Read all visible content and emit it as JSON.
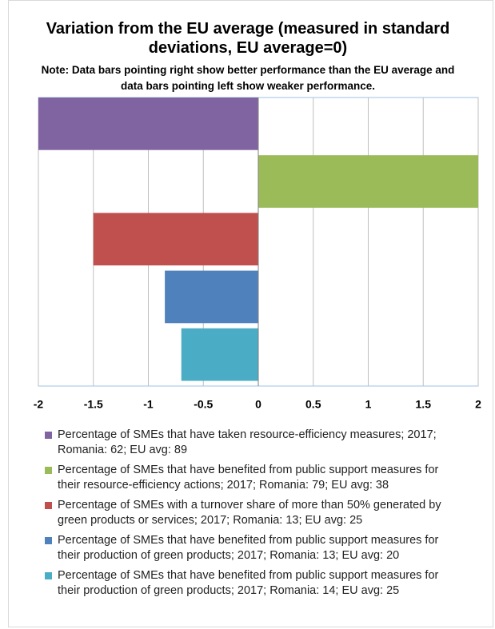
{
  "chart_data": {
    "type": "barh",
    "title": "Variation from the EU average (measured in standard deviations, EU average=0)",
    "subtitle": "Note: Data bars pointing right show better performance than the EU average and data bars pointing left show weaker performance.",
    "categories": [
      "Percentage of SMEs that have taken resource-efficiency measures; 2017; Romania: 62; EU avg: 89",
      "Percentage of SMEs that have benefited from public support measures for their resource-efficiency actions; 2017; Romania: 79; EU avg: 38",
      "Percentage of SMEs with a turnover share of more than 50% generated by green products or services; 2017; Romania: 13; EU avg: 25",
      "Percentage of SMEs that have benefited from public support measures for their production of green products; 2017; Romania: 13; EU avg: 20",
      "Percentage of SMEs that have benefited from public support measures for their production of green products; 2017; Romania: 14; EU avg: 25"
    ],
    "values": [
      -2,
      2,
      -1.5,
      -0.85,
      -0.7
    ],
    "colors": [
      "#8064a2",
      "#9bbb59",
      "#c0504d",
      "#4f81bd",
      "#4bacc6"
    ],
    "xlim": [
      -2,
      2
    ],
    "xticks": [
      -2,
      -1.5,
      -1,
      -0.5,
      0,
      0.5,
      1,
      1.5,
      2
    ],
    "grid": true
  }
}
